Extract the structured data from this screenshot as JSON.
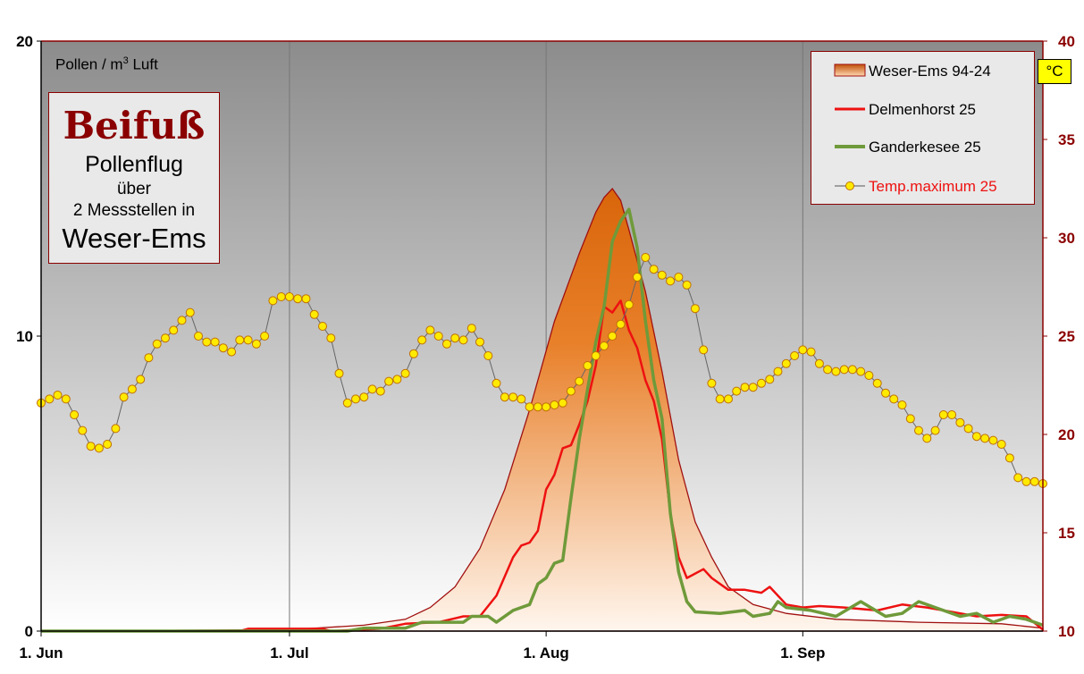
{
  "colors": {
    "weser_ems": "#d9650a",
    "weser_ems_edge": "#a01010",
    "delmenhorst": "#ee1111",
    "ganderkesee": "#6f9a3a",
    "temp_fill": "#ffea00",
    "temp_edge": "#c07000",
    "axis_right": "#8b0000"
  },
  "title_box": {
    "species": "Beifuß",
    "line1": "Pollenflug",
    "line2": "über",
    "line3": "2 Messstellen in",
    "line4": "Weser-Ems"
  },
  "unit": {
    "text": "Pollen / m",
    "sup": "3",
    "suffix": " Luft"
  },
  "celsius_label": "°C",
  "chart_data": {
    "type": "line",
    "x_type": "date",
    "x_range": [
      "2025-06-01",
      "2025-09-30"
    ],
    "x_ticks": [
      "1. Jun",
      "1. Jul",
      "1. Aug",
      "1. Sep"
    ],
    "x_tick_dates": [
      "2025-06-01",
      "2025-07-01",
      "2025-08-01",
      "2025-09-01"
    ],
    "y_left": {
      "range": [
        0,
        20
      ],
      "ticks": [
        "0",
        "10",
        "20"
      ]
    },
    "y_right": {
      "range": [
        10,
        40
      ],
      "ticks": [
        "10",
        "15",
        "20",
        "25",
        "30",
        "35",
        "40"
      ]
    },
    "grid": "vertical",
    "legend": "top-right",
    "series": [
      {
        "name": "Weser-Ems 94-24",
        "kind": "area",
        "axis": "left",
        "points": [
          [
            "2025-06-01",
            0
          ],
          [
            "2025-07-01",
            0.05
          ],
          [
            "2025-07-10",
            0.2
          ],
          [
            "2025-07-15",
            0.4
          ],
          [
            "2025-07-18",
            0.8
          ],
          [
            "2025-07-21",
            1.5
          ],
          [
            "2025-07-24",
            2.8
          ],
          [
            "2025-07-27",
            4.8
          ],
          [
            "2025-07-30",
            7.5
          ],
          [
            "2025-08-02",
            10.5
          ],
          [
            "2025-08-05",
            12.8
          ],
          [
            "2025-08-07",
            14.2
          ],
          [
            "2025-08-08",
            14.7
          ],
          [
            "2025-08-09",
            15.0
          ],
          [
            "2025-08-10",
            14.6
          ],
          [
            "2025-08-11",
            13.6
          ],
          [
            "2025-08-13",
            11.5
          ],
          [
            "2025-08-15",
            8.8
          ],
          [
            "2025-08-17",
            5.8
          ],
          [
            "2025-08-19",
            3.7
          ],
          [
            "2025-08-21",
            2.5
          ],
          [
            "2025-08-23",
            1.5
          ],
          [
            "2025-08-26",
            0.9
          ],
          [
            "2025-08-30",
            0.6
          ],
          [
            "2025-09-05",
            0.4
          ],
          [
            "2025-09-15",
            0.3
          ],
          [
            "2025-09-25",
            0.25
          ],
          [
            "2025-09-30",
            0.1
          ]
        ]
      },
      {
        "name": "Delmenhorst 25",
        "kind": "line",
        "axis": "left",
        "points": [
          [
            "2025-06-01",
            0
          ],
          [
            "2025-06-25",
            0
          ],
          [
            "2025-06-26",
            0.08
          ],
          [
            "2025-07-05",
            0.08
          ],
          [
            "2025-07-06",
            0
          ],
          [
            "2025-07-12",
            0.08
          ],
          [
            "2025-07-15",
            0.25
          ],
          [
            "2025-07-19",
            0.3
          ],
          [
            "2025-07-22",
            0.5
          ],
          [
            "2025-07-24",
            0.5
          ],
          [
            "2025-07-26",
            1.2
          ],
          [
            "2025-07-28",
            2.5
          ],
          [
            "2025-07-29",
            2.9
          ],
          [
            "2025-07-30",
            3.0
          ],
          [
            "2025-07-31",
            3.4
          ],
          [
            "2025-08-01",
            4.8
          ],
          [
            "2025-08-02",
            5.3
          ],
          [
            "2025-08-03",
            6.2
          ],
          [
            "2025-08-04",
            6.3
          ],
          [
            "2025-08-05",
            7.0
          ],
          [
            "2025-08-06",
            7.8
          ],
          [
            "2025-08-07",
            9.0
          ],
          [
            "2025-08-08",
            11.0
          ],
          [
            "2025-08-09",
            10.8
          ],
          [
            "2025-08-10",
            11.2
          ],
          [
            "2025-08-11",
            10.2
          ],
          [
            "2025-08-12",
            9.6
          ],
          [
            "2025-08-13",
            8.5
          ],
          [
            "2025-08-14",
            7.8
          ],
          [
            "2025-08-15",
            6.5
          ],
          [
            "2025-08-16",
            4.0
          ],
          [
            "2025-08-17",
            2.5
          ],
          [
            "2025-08-18",
            1.8
          ],
          [
            "2025-08-20",
            2.1
          ],
          [
            "2025-08-21",
            1.8
          ],
          [
            "2025-08-23",
            1.4
          ],
          [
            "2025-08-25",
            1.4
          ],
          [
            "2025-08-27",
            1.3
          ],
          [
            "2025-08-28",
            1.5
          ],
          [
            "2025-08-30",
            0.9
          ],
          [
            "2025-09-01",
            0.8
          ],
          [
            "2025-09-03",
            0.85
          ],
          [
            "2025-09-06",
            0.8
          ],
          [
            "2025-09-10",
            0.7
          ],
          [
            "2025-09-13",
            0.9
          ],
          [
            "2025-09-16",
            0.8
          ],
          [
            "2025-09-18",
            0.7
          ],
          [
            "2025-09-22",
            0.5
          ],
          [
            "2025-09-25",
            0.55
          ],
          [
            "2025-09-28",
            0.5
          ],
          [
            "2025-09-30",
            0.05
          ]
        ]
      },
      {
        "name": "Ganderkesee 25",
        "kind": "line",
        "axis": "left",
        "points": [
          [
            "2025-06-01",
            0
          ],
          [
            "2025-07-08",
            0
          ],
          [
            "2025-07-10",
            0.1
          ],
          [
            "2025-07-15",
            0.1
          ],
          [
            "2025-07-17",
            0.3
          ],
          [
            "2025-07-22",
            0.3
          ],
          [
            "2025-07-23",
            0.5
          ],
          [
            "2025-07-25",
            0.5
          ],
          [
            "2025-07-26",
            0.3
          ],
          [
            "2025-07-28",
            0.7
          ],
          [
            "2025-07-30",
            0.9
          ],
          [
            "2025-07-31",
            1.6
          ],
          [
            "2025-08-01",
            1.8
          ],
          [
            "2025-08-02",
            2.3
          ],
          [
            "2025-08-03",
            2.4
          ],
          [
            "2025-08-04",
            4.5
          ],
          [
            "2025-08-05",
            6.5
          ],
          [
            "2025-08-06",
            8.2
          ],
          [
            "2025-08-07",
            9.8
          ],
          [
            "2025-08-08",
            11.0
          ],
          [
            "2025-08-09",
            13.2
          ],
          [
            "2025-08-10",
            13.9
          ],
          [
            "2025-08-11",
            14.3
          ],
          [
            "2025-08-12",
            13.0
          ],
          [
            "2025-08-13",
            10.5
          ],
          [
            "2025-08-14",
            8.5
          ],
          [
            "2025-08-15",
            7.2
          ],
          [
            "2025-08-16",
            4.0
          ],
          [
            "2025-08-17",
            2.0
          ],
          [
            "2025-08-18",
            1.0
          ],
          [
            "2025-08-19",
            0.65
          ],
          [
            "2025-08-22",
            0.6
          ],
          [
            "2025-08-25",
            0.7
          ],
          [
            "2025-08-26",
            0.5
          ],
          [
            "2025-08-28",
            0.6
          ],
          [
            "2025-08-29",
            1.0
          ],
          [
            "2025-08-30",
            0.8
          ],
          [
            "2025-09-02",
            0.7
          ],
          [
            "2025-09-05",
            0.5
          ],
          [
            "2025-09-08",
            1.0
          ],
          [
            "2025-09-11",
            0.5
          ],
          [
            "2025-09-13",
            0.6
          ],
          [
            "2025-09-15",
            1.0
          ],
          [
            "2025-09-18",
            0.7
          ],
          [
            "2025-09-20",
            0.5
          ],
          [
            "2025-09-22",
            0.6
          ],
          [
            "2025-09-24",
            0.3
          ],
          [
            "2025-09-26",
            0.5
          ],
          [
            "2025-09-28",
            0.4
          ],
          [
            "2025-09-30",
            0.2
          ]
        ]
      },
      {
        "name": "Temp.maximum 25",
        "kind": "dotted-line",
        "axis": "right",
        "start": "2025-06-01",
        "step_days": 1,
        "values": [
          21.6,
          21.8,
          22.0,
          21.8,
          21.0,
          20.2,
          19.4,
          19.3,
          19.5,
          20.3,
          21.9,
          22.3,
          22.8,
          23.9,
          24.6,
          24.9,
          25.3,
          25.8,
          26.2,
          25.0,
          24.7,
          24.7,
          24.4,
          24.2,
          24.8,
          24.8,
          24.6,
          25.0,
          26.8,
          27.0,
          27.0,
          26.9,
          26.9,
          26.1,
          25.5,
          24.9,
          23.1,
          21.6,
          21.8,
          21.9,
          22.3,
          22.2,
          22.7,
          22.8,
          23.1,
          24.1,
          24.8,
          25.3,
          25.0,
          24.6,
          24.9,
          24.8,
          25.4,
          24.7,
          24.0,
          22.6,
          21.9,
          21.9,
          21.8,
          21.4,
          21.4,
          21.4,
          21.5,
          21.6,
          22.2,
          22.7,
          23.5,
          24.0,
          24.5,
          25.0,
          25.6,
          26.6,
          28.0,
          29.0,
          28.4,
          28.1,
          27.8,
          28.0,
          27.6,
          26.4,
          24.3,
          22.6,
          21.8,
          21.8,
          22.2,
          22.4,
          22.4,
          22.6,
          22.8,
          23.2,
          23.6,
          24.0,
          24.3,
          24.2,
          23.6,
          23.3,
          23.2,
          23.3,
          23.3,
          23.2,
          23.0,
          22.6,
          22.1,
          21.8,
          21.5,
          20.8,
          20.2,
          19.8,
          20.2,
          21.0,
          21.0,
          20.6,
          20.3,
          19.9,
          19.8,
          19.7,
          19.5,
          18.8,
          17.8,
          17.6,
          17.6,
          17.5
        ]
      }
    ]
  }
}
